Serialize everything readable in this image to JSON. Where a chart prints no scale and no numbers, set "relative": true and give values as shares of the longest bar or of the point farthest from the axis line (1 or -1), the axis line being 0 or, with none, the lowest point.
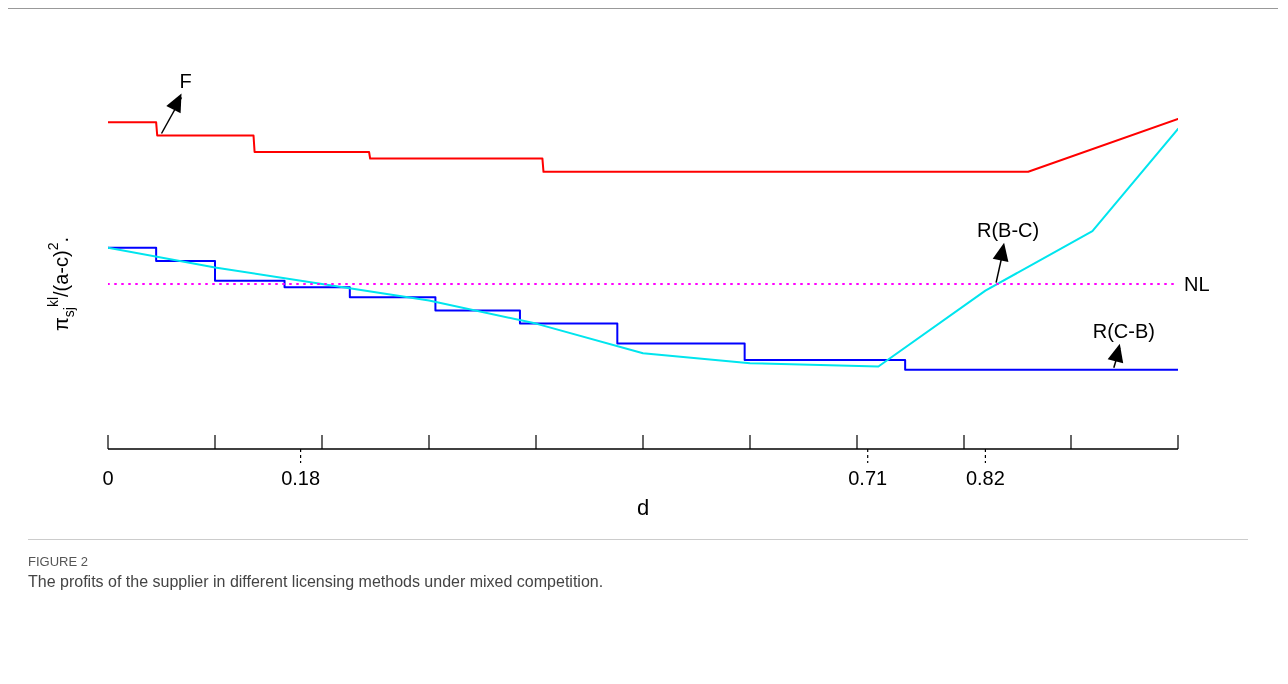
{
  "chart_data": {
    "type": "line",
    "relative": true,
    "xlabel": "d",
    "ylabel": "π$_{sj}$$^{kl}$/(a-c)$^{2}$.",
    "xlim": [
      0,
      1
    ],
    "xticks": [
      0,
      {
        "value": 0.1,
        "label": null
      },
      0.18,
      {
        "value": 0.2,
        "label": null
      },
      {
        "value": 0.3,
        "label": null
      },
      {
        "value": 0.4,
        "label": null
      },
      {
        "value": 0.5,
        "label": null
      },
      {
        "value": 0.6,
        "label": null
      },
      {
        "value": 0.7,
        "label": null
      },
      0.71,
      {
        "value": 0.8,
        "label": null
      },
      0.82,
      {
        "value": 0.9,
        "label": null
      },
      {
        "value": 1,
        "label": null
      }
    ],
    "series": [
      {
        "name": "F",
        "color": "#ff0000",
        "x": [
          0,
          0.045,
          0.046,
          0.136,
          0.137,
          0.244,
          0.245,
          0.406,
          0.407,
          0.86,
          1
        ],
        "values": [
          0.99,
          0.99,
          0.95,
          0.95,
          0.9,
          0.9,
          0.88,
          0.88,
          0.84,
          0.84,
          1
        ]
      },
      {
        "name": "R(C-B)",
        "color": "#0000ff",
        "type": "step",
        "x": [
          0,
          0.045,
          0.1,
          0.165,
          0.226,
          0.306,
          0.385,
          0.476,
          0.595,
          0.745,
          1
        ],
        "values": [
          0.61,
          0.57,
          0.51,
          0.49,
          0.46,
          0.42,
          0.38,
          0.32,
          0.27,
          0.24,
          0.24
        ]
      },
      {
        "name": "R(B-C)",
        "color": "#00e5ee",
        "x": [
          0,
          0.1,
          0.2,
          0.3,
          0.4,
          0.5,
          0.6,
          0.72,
          0.82,
          0.92,
          1
        ],
        "values": [
          0.61,
          0.55,
          0.5,
          0.45,
          0.38,
          0.29,
          0.26,
          0.25,
          0.48,
          0.66,
          0.97
        ]
      },
      {
        "name": "NL",
        "color": "#ff00ff",
        "line_style": "dotted",
        "x": [
          0,
          1
        ],
        "values": [
          0.5,
          0.5
        ]
      }
    ],
    "annotations": [
      "FIGURE 2",
      "The profits of the supplier in different licensing methods under mixed competition."
    ]
  }
}
